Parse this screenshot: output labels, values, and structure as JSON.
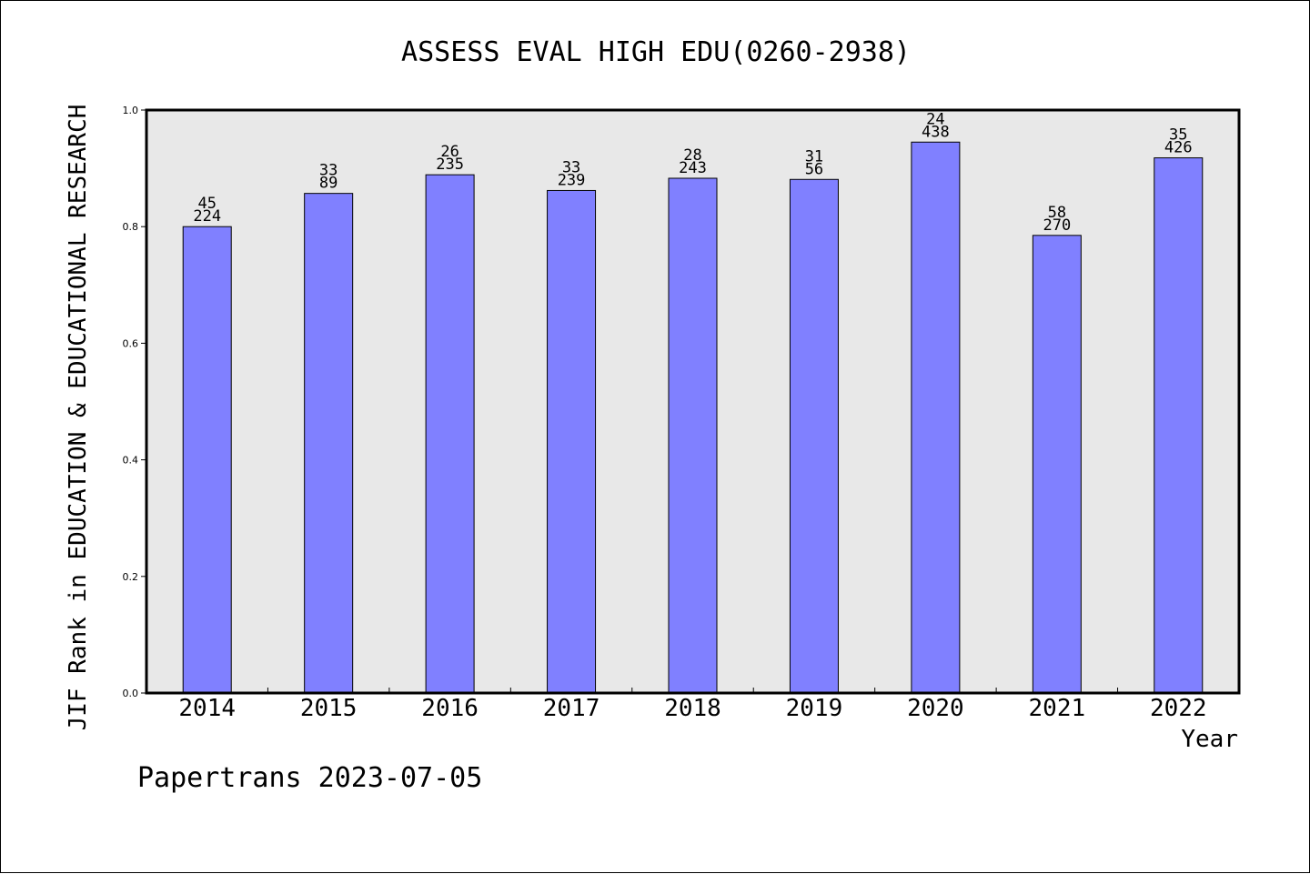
{
  "chart_data": {
    "type": "bar",
    "title": "ASSESS EVAL HIGH EDU(0260-2938)",
    "xlabel": "Year",
    "ylabel": "JIF Rank in EDUCATION & EDUCATIONAL RESEARCH",
    "ylim": [
      0,
      1.0
    ],
    "yticks": [
      "0.0",
      "0.2",
      "0.4",
      "0.6",
      "0.8",
      "1.0"
    ],
    "categories": [
      "2014",
      "2015",
      "2016",
      "2017",
      "2018",
      "2019",
      "2020",
      "2021",
      "2022"
    ],
    "values": [
      0.8,
      0.857,
      0.889,
      0.862,
      0.883,
      0.881,
      0.945,
      0.785,
      0.918
    ],
    "label_top": [
      "45",
      "33",
      "26",
      "33",
      "28",
      "31",
      "24",
      "58",
      "35"
    ],
    "label_bottom": [
      "224",
      "89",
      "235",
      "239",
      "243",
      "56",
      "438",
      "270",
      "426"
    ],
    "bar_color": "#8080ff",
    "plot_background": "#e8e8e8",
    "grid": false,
    "legend": "none"
  },
  "footer": "Papertrans 2023-07-05"
}
